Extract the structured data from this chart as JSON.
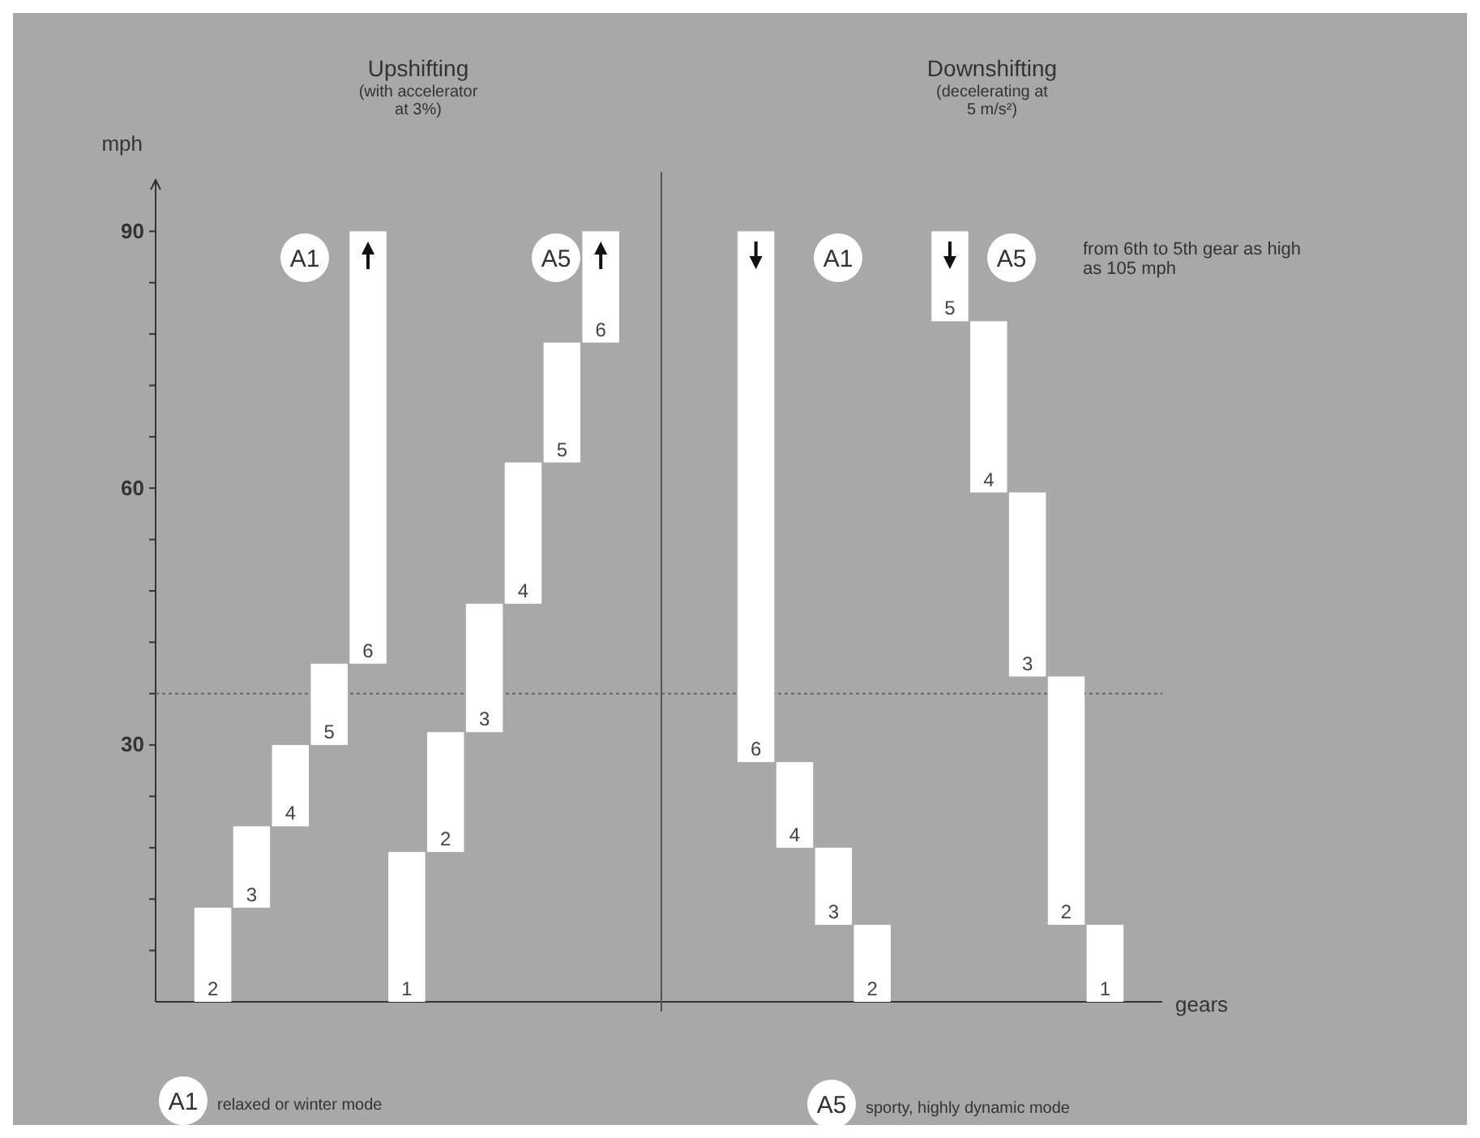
{
  "chart_data": {
    "type": "bar",
    "xlabel": "gears",
    "ylabel": "mph",
    "categories": [
      null,
      null,
      null,
      null,
      null,
      null,
      null,
      null,
      null,
      null,
      null,
      null,
      null,
      null,
      null,
      null,
      null,
      null,
      null,
      null,
      null,
      null,
      null,
      null,
      null,
      null
    ],
    "values": [
      null,
      11,
      9.5,
      9.5,
      9.5,
      50.5,
      17.5,
      14,
      15,
      16.5,
      14,
      13,
      null,
      null,
      null,
      62,
      10,
      9,
      9,
      null,
      10.5,
      20,
      21.5,
      29,
      9,
      null
    ],
    "base": [
      null,
      0,
      11,
      20.5,
      30,
      39.5,
      0,
      17.5,
      31.5,
      46.5,
      63,
      77,
      null,
      null,
      null,
      28,
      18,
      9,
      0,
      null,
      79.5,
      59.5,
      38,
      9,
      0,
      null
    ],
    "color": "#ffffff",
    "ylim": [
      0,
      96
    ],
    "yticks": [
      {
        "value": 6,
        "label": null
      },
      {
        "value": 12,
        "label": null
      },
      {
        "value": 18,
        "label": null
      },
      {
        "value": 24,
        "label": null
      },
      30,
      {
        "value": 36,
        "label": null
      },
      {
        "value": 42,
        "label": null
      },
      {
        "value": 48,
        "label": null
      },
      {
        "value": 54,
        "label": null
      },
      60,
      {
        "value": 66,
        "label": null
      },
      {
        "value": 72,
        "label": null
      },
      {
        "value": 78,
        "label": null
      },
      {
        "value": 84,
        "label": null
      },
      90
    ],
    "ref_lines": [
      {
        "axis": "y",
        "value": 36,
        "color": "#666666",
        "line_style": "dotted"
      }
    ],
    "annotations": [
      "Upshifting",
      "(with accelerator at 3%)",
      "Downshifting",
      "(decelerating at 5 m/s²)",
      "A1",
      "A5",
      "A1",
      "A5",
      "from 6th to 5th gear as high as 105 mph",
      "A1",
      "relaxed or winter mode",
      "A5",
      "sporty, highly dynamic mode",
      "2",
      "3",
      "4",
      "5",
      "6",
      "1",
      "2",
      "3",
      "4",
      "5",
      "6",
      "6",
      "4",
      "3",
      "2",
      "5",
      "4",
      "3",
      "2",
      "1"
    ]
  }
}
